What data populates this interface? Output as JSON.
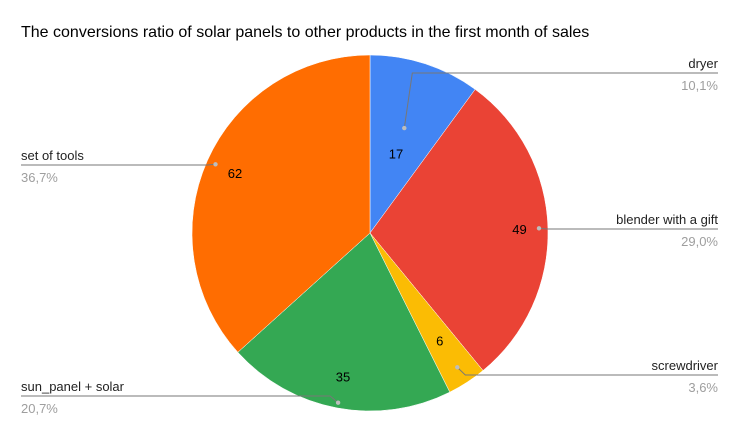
{
  "chart_data": {
    "type": "pie",
    "title": "The conversions ratio of solar panels to other products in the first month of sales",
    "categories": [
      "dryer",
      "blender with a gift",
      "screwdriver",
      "sun_panel + solar",
      "set of tools"
    ],
    "values": [
      17,
      49,
      6,
      35,
      62
    ],
    "percent_labels": [
      "10,1%",
      "29,0%",
      "3,6%",
      "20,7%",
      "36,7%"
    ],
    "colors": [
      "#4285F4",
      "#EA4335",
      "#FBBC04",
      "#34A853",
      "#FF6D01"
    ],
    "start_angle": "12 o'clock",
    "direction": "clockwise",
    "legend": "labeled leader lines"
  }
}
